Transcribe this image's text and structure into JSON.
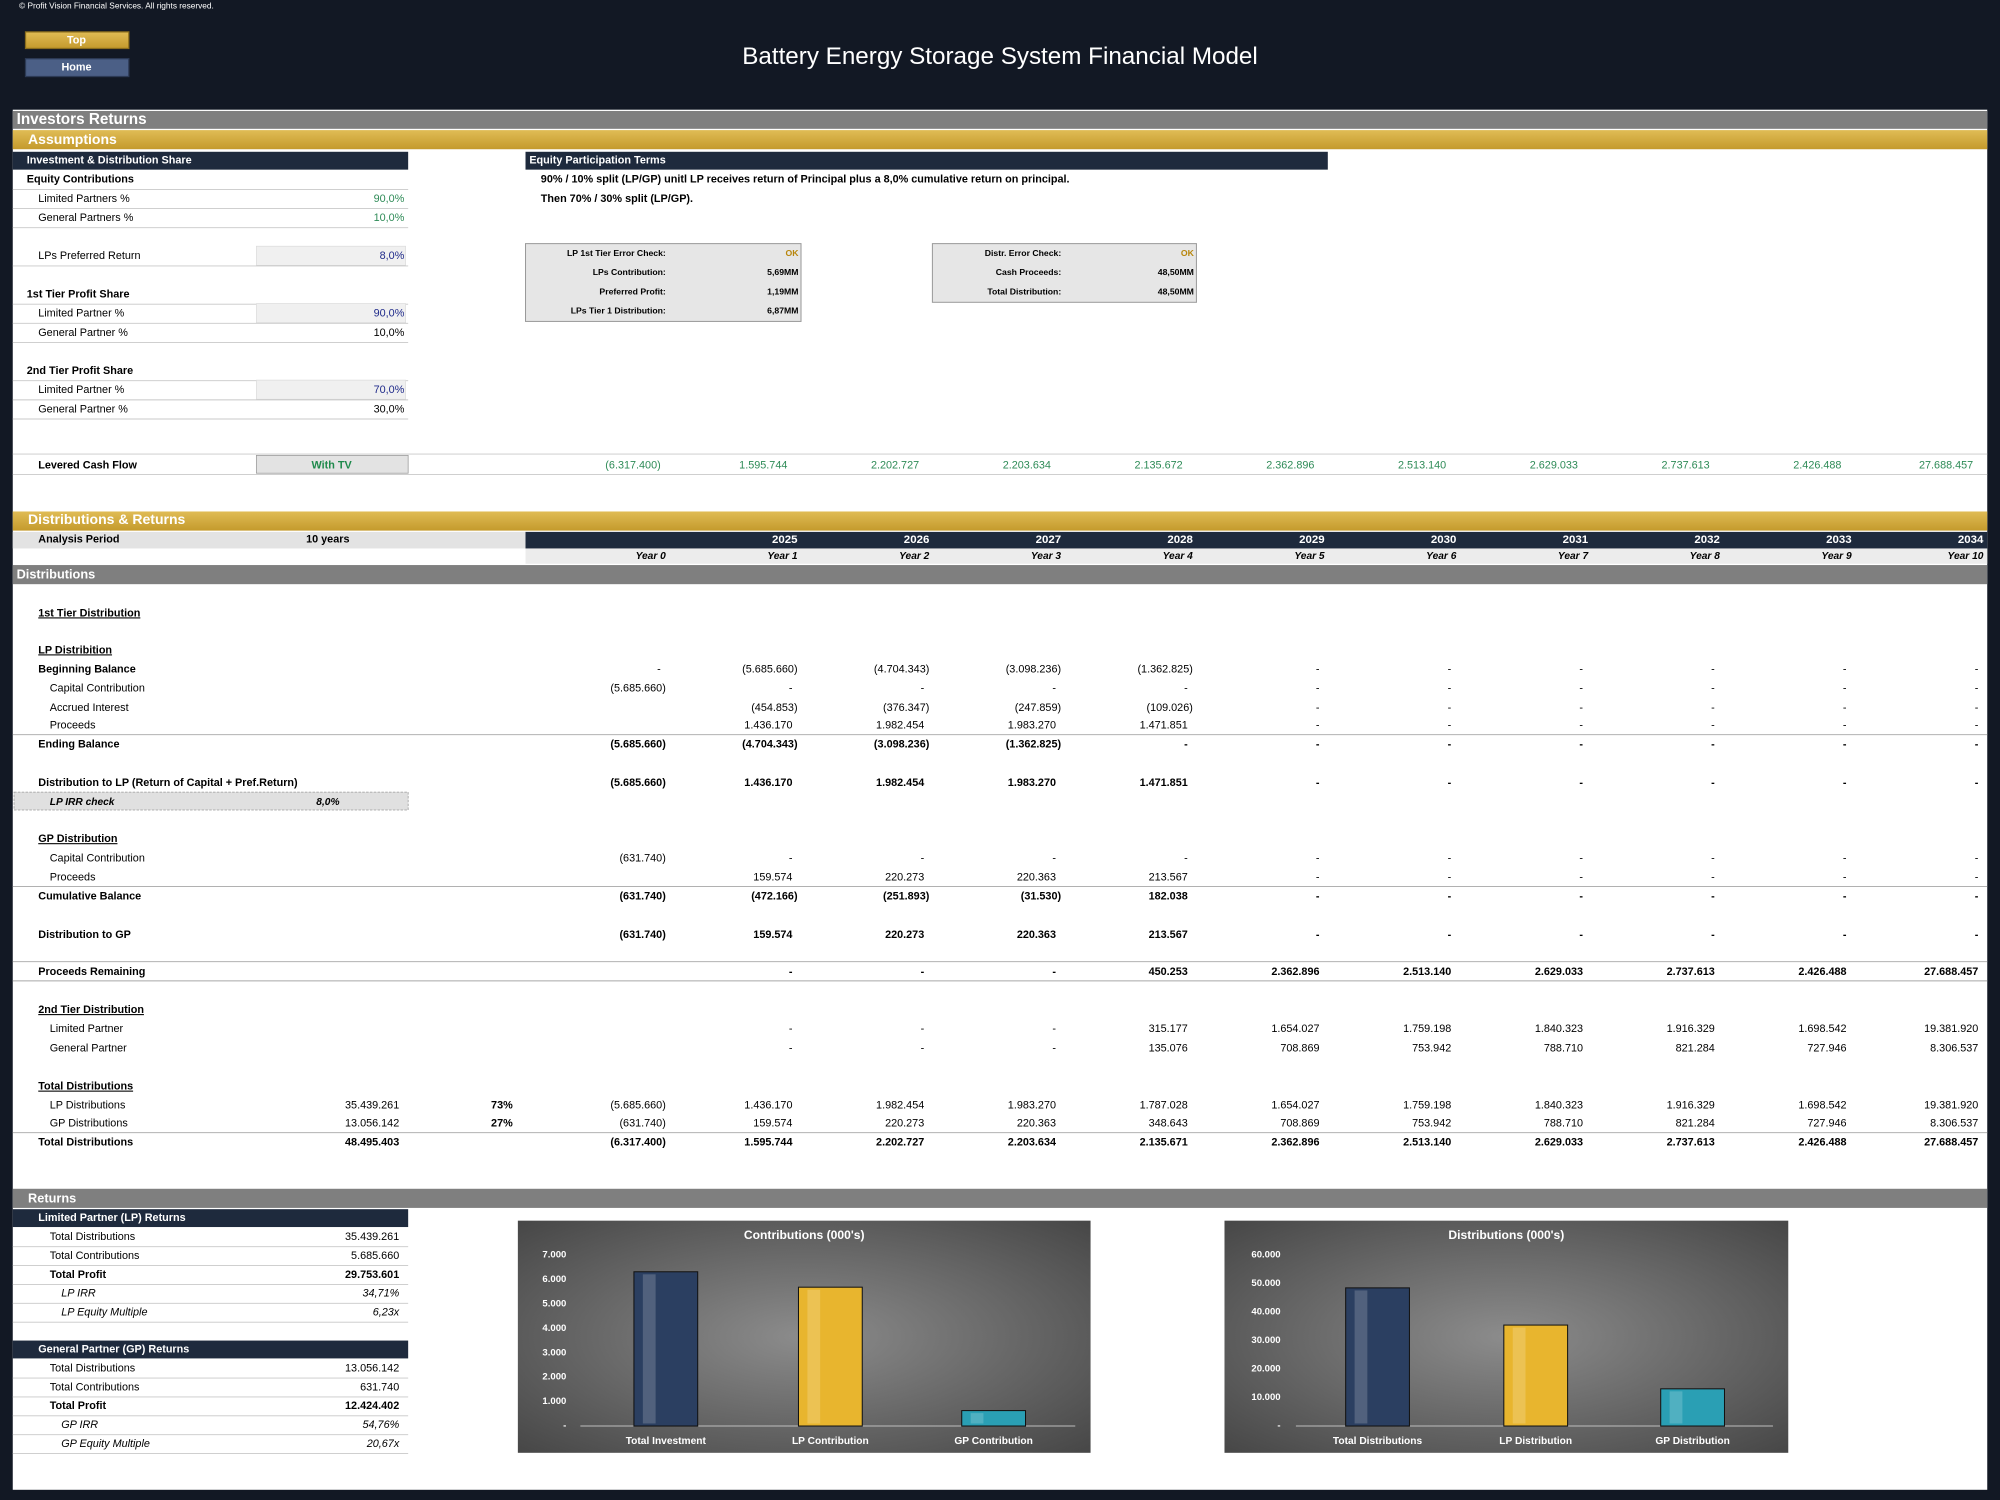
{
  "copyright": "© Profit Vision Financial Services. All rights reserved.",
  "nav": {
    "top": "Top",
    "home": "Home"
  },
  "header": {
    "title": "Battery Energy Storage System Financial Model"
  },
  "sections": {
    "investors_returns": "Investors Returns",
    "assumptions": "Assumptions",
    "distributions_returns": "Distributions & Returns",
    "distributions": "Distributions",
    "returns": "Returns"
  },
  "assumptions": {
    "header": "Investment & Distribution Share",
    "rows": [
      {
        "label": "Equity Contributions"
      },
      {
        "label": "Limited Partners %",
        "value": "90,0%"
      },
      {
        "label": "General Partners %",
        "value": "10,0%"
      },
      {
        "label": "LPs Preferred Return",
        "value": "8,0%"
      },
      {
        "label": "1st Tier Profit Share"
      },
      {
        "label": "Limited Partner %",
        "value": "90,0%"
      },
      {
        "label": "General Partner %",
        "value": "10,0%"
      },
      {
        "label": "2nd Tier Profit Share"
      },
      {
        "label": "Limited Partner %",
        "value": "70,0%"
      },
      {
        "label": "General Partner %",
        "value": "30,0%"
      }
    ]
  },
  "equity_terms": {
    "header": "Equity Participation Terms",
    "lines": [
      "90% / 10% split (LP/GP) unitl LP receives return of Principal plus a 8,0% cumulative return on principal.",
      "Then 70% / 30% split (LP/GP)."
    ]
  },
  "checks": [
    {
      "rows": [
        {
          "label": "LP 1st Tier Error Check:",
          "value": "OK"
        },
        {
          "label": "LPs Contribution:",
          "value": "5,69MM"
        },
        {
          "label": "Preferred Profit:",
          "value": "1,19MM"
        },
        {
          "label": "LPs Tier 1 Distribution:",
          "value": "6,87MM"
        }
      ]
    },
    {
      "rows": [
        {
          "label": "Distr. Error Check:",
          "value": "OK"
        },
        {
          "label": "Cash Proceeds:",
          "value": "48,50MM"
        },
        {
          "label": "Total Distribution:",
          "value": "48,50MM"
        }
      ]
    }
  ],
  "levered_cash_flow": {
    "label": "Levered Cash Flow",
    "scenario": "With TV",
    "values": [
      "(6.317.400)",
      "1.595.744",
      "2.202.727",
      "2.203.634",
      "2.135.672",
      "2.362.896",
      "2.513.140",
      "2.629.033",
      "2.737.613",
      "2.426.488",
      "27.688.457"
    ]
  },
  "analysis_period": {
    "label": "Analysis Period",
    "value": "10 years"
  },
  "years": [
    "2025",
    "2026",
    "2027",
    "2028",
    "2029",
    "2030",
    "2031",
    "2032",
    "2033",
    "2034"
  ],
  "periods": [
    "Year 0",
    "Year 1",
    "Year 2",
    "Year 3",
    "Year 4",
    "Year 5",
    "Year 6",
    "Year 7",
    "Year 8",
    "Year 9",
    "Year 10"
  ],
  "table": {
    "rows": [
      {
        "label": "1st Tier Distribution"
      },
      {
        "label": "LP Distribition"
      },
      {
        "label": "Beginning Balance",
        "values": [
          "-",
          "(5.685.660)",
          "(4.704.343)",
          "(3.098.236)",
          "(1.362.825)",
          "-",
          "-",
          "-",
          "-",
          "-",
          "-"
        ]
      },
      {
        "label": "Capital Contribution",
        "values": [
          "(5.685.660)",
          "-",
          "-",
          "-",
          "-",
          "-",
          "-",
          "-",
          "-",
          "-",
          "-"
        ]
      },
      {
        "label": "Accrued Interest",
        "values": [
          null,
          "(454.853)",
          "(376.347)",
          "(247.859)",
          "(109.026)",
          "-",
          "-",
          "-",
          "-",
          "-",
          "-"
        ]
      },
      {
        "label": "Proceeds",
        "values": [
          null,
          "1.436.170",
          "1.982.454",
          "1.983.270",
          "1.471.851",
          "-",
          "-",
          "-",
          "-",
          "-",
          "-"
        ]
      },
      {
        "label": "Ending Balance",
        "values": [
          "(5.685.660)",
          "(4.704.343)",
          "(3.098.236)",
          "(1.362.825)",
          "-",
          "-",
          "-",
          "-",
          "-",
          "-",
          "-"
        ]
      },
      {
        "label": "Distribution to LP (Return of Capital + Pref.Return)",
        "values": [
          "(5.685.660)",
          "1.436.170",
          "1.982.454",
          "1.983.270",
          "1.471.851",
          "-",
          "-",
          "-",
          "-",
          "-",
          "-"
        ]
      },
      {
        "label": "GP Distribution"
      },
      {
        "label": "Capital Contribution",
        "values": [
          "(631.740)",
          "-",
          "-",
          "-",
          "-",
          "-",
          "-",
          "-",
          "-",
          "-",
          "-"
        ]
      },
      {
        "label": "Proceeds",
        "values": [
          null,
          "159.574",
          "220.273",
          "220.363",
          "213.567",
          "-",
          "-",
          "-",
          "-",
          "-",
          "-"
        ]
      },
      {
        "label": "Cumulative Balance",
        "values": [
          "(631.740)",
          "(472.166)",
          "(251.893)",
          "(31.530)",
          "182.038",
          "-",
          "-",
          "-",
          "-",
          "-",
          "-"
        ]
      },
      {
        "label": "Distribution to GP",
        "values": [
          "(631.740)",
          "159.574",
          "220.273",
          "220.363",
          "213.567",
          "-",
          "-",
          "-",
          "-",
          "-",
          "-"
        ]
      },
      {
        "label": "Proceeds Remaining",
        "values": [
          null,
          "-",
          "-",
          "-",
          "450.253",
          "2.362.896",
          "2.513.140",
          "2.629.033",
          "2.737.613",
          "2.426.488",
          "27.688.457"
        ]
      },
      {
        "label": "2nd Tier Distribution"
      },
      {
        "label": "Limited Partner",
        "values": [
          null,
          "-",
          "-",
          "-",
          "315.177",
          "1.654.027",
          "1.759.198",
          "1.840.323",
          "1.916.329",
          "1.698.542",
          "19.381.920"
        ]
      },
      {
        "label": "General Partner",
        "values": [
          null,
          "-",
          "-",
          "-",
          "135.076",
          "708.869",
          "753.942",
          "788.710",
          "821.284",
          "727.946",
          "8.306.537"
        ]
      },
      {
        "label": "Total Distributions"
      },
      {
        "label": "LP Distributions",
        "total": "35.439.261",
        "share": "73%",
        "values": [
          "(5.685.660)",
          "1.436.170",
          "1.982.454",
          "1.983.270",
          "1.787.028",
          "1.654.027",
          "1.759.198",
          "1.840.323",
          "1.916.329",
          "1.698.542",
          "19.381.920"
        ]
      },
      {
        "label": "GP Distributions",
        "total": "13.056.142",
        "share": "27%",
        "values": [
          "(631.740)",
          "159.574",
          "220.273",
          "220.363",
          "348.643",
          "708.869",
          "753.942",
          "788.710",
          "821.284",
          "727.946",
          "8.306.537"
        ]
      },
      {
        "label": "Total Distributions",
        "total": "48.495.403",
        "values": [
          "(6.317.400)",
          "1.595.744",
          "2.202.727",
          "2.203.634",
          "2.135.671",
          "2.362.896",
          "2.513.140",
          "2.629.033",
          "2.737.613",
          "2.426.488",
          "27.688.457"
        ]
      }
    ]
  },
  "lp_irr_check": {
    "label": "LP IRR check",
    "value": "8,0%"
  },
  "lp_returns": {
    "header": "Limited Partner (LP) Returns",
    "rows": [
      {
        "label": "Total Distributions",
        "value": "35.439.261"
      },
      {
        "label": "Total Contributions",
        "value": "5.685.660"
      },
      {
        "label": "Total Profit",
        "value": "29.753.601"
      },
      {
        "label": "LP IRR",
        "value": "34,71%"
      },
      {
        "label": "LP Equity Multiple",
        "value": "6,23x"
      }
    ]
  },
  "gp_returns": {
    "header": "General Partner (GP) Returns",
    "rows": [
      {
        "label": "Total Distributions",
        "value": "13.056.142"
      },
      {
        "label": "Total Contributions",
        "value": "631.740"
      },
      {
        "label": "Total Profit",
        "value": "12.424.402"
      },
      {
        "label": "GP IRR",
        "value": "54,76%"
      },
      {
        "label": "GP Equity Multiple",
        "value": "20,67x"
      }
    ]
  },
  "chart_data": [
    {
      "type": "bar",
      "title": "Contributions (000's)",
      "categories": [
        "Total Investment",
        "LP Contribution",
        "GP Contribution"
      ],
      "values": [
        6317.4,
        5685.66,
        631.74
      ],
      "colors": [
        "#2b3f61",
        "#e8b52e",
        "#2a9fb4"
      ],
      "ylim": [
        0,
        7000
      ],
      "yticks": [
        {
          "value": 0,
          "label": "-"
        },
        {
          "value": 1000,
          "label": "1.000"
        },
        {
          "value": 2000,
          "label": "2.000"
        },
        {
          "value": 3000,
          "label": "3.000"
        },
        {
          "value": 4000,
          "label": "4.000"
        },
        {
          "value": 5000,
          "label": "5.000"
        },
        {
          "value": 6000,
          "label": "6.000"
        },
        {
          "value": 7000,
          "label": "7.000"
        }
      ]
    },
    {
      "type": "bar",
      "title": "Distributions (000's)",
      "categories": [
        "Total Distributions",
        "LP Distribution",
        "GP Distribution"
      ],
      "values": [
        48495.403,
        35439.261,
        13056.142
      ],
      "colors": [
        "#2b3f61",
        "#e8b52e",
        "#2a9fb4"
      ],
      "ylim": [
        0,
        60000
      ],
      "yticks": [
        {
          "value": 0,
          "label": "-"
        },
        {
          "value": 10000,
          "label": "10.000"
        },
        {
          "value": 20000,
          "label": "20.000"
        },
        {
          "value": 30000,
          "label": "30.000"
        },
        {
          "value": 40000,
          "label": "40.000"
        },
        {
          "value": 50000,
          "label": "50.000"
        },
        {
          "value": 60000,
          "label": "60.000"
        }
      ]
    }
  ]
}
